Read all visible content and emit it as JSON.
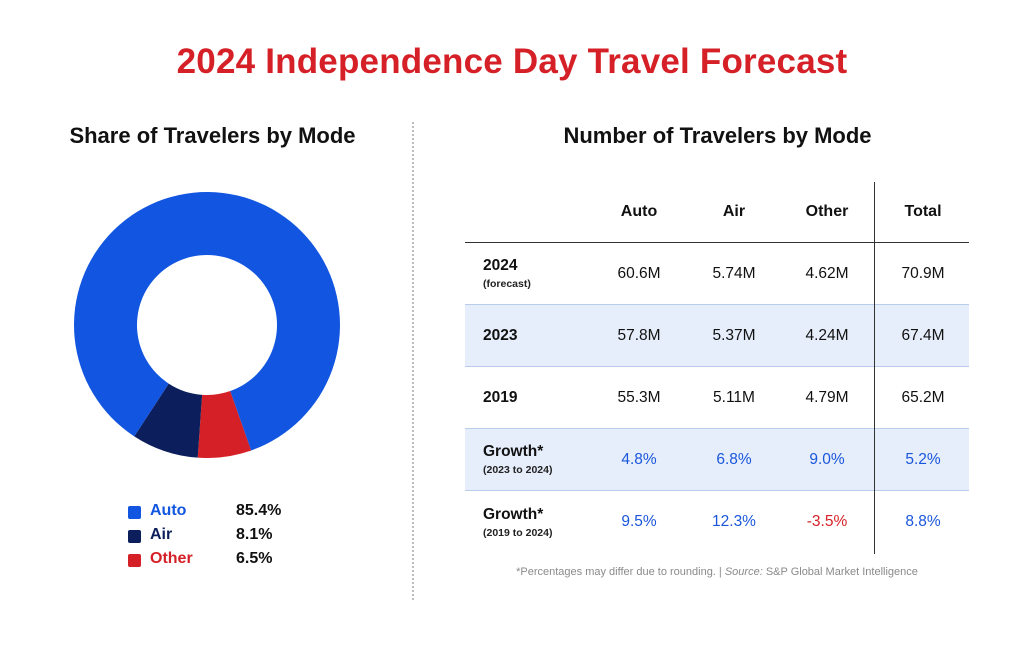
{
  "title": "2024 Independence Day Travel Forecast",
  "colors": {
    "auto": "#1155e0",
    "air": "#0c1f5c",
    "other": "#d62027",
    "title": "#d62027",
    "growth_positive": "#1a56db",
    "growth_negative": "#d62027",
    "row_shade": "#e6eefb"
  },
  "left_panel": {
    "title": "Share of Travelers by Mode",
    "legend": [
      {
        "label": "Auto",
        "value": "85.4%",
        "color": "#1155e0"
      },
      {
        "label": "Air",
        "value": "8.1%",
        "color": "#0c1f5c"
      },
      {
        "label": "Other",
        "value": "6.5%",
        "color": "#d62027"
      }
    ]
  },
  "right_panel": {
    "title": "Number of Travelers by Mode",
    "columns": [
      "Auto",
      "Air",
      "Other",
      "Total"
    ],
    "rows": [
      {
        "label": "2024",
        "sublabel": "(forecast)",
        "values": [
          "60.6M",
          "5.74M",
          "4.62M",
          "70.9M"
        ]
      },
      {
        "label": "2023",
        "sublabel": "",
        "values": [
          "57.8M",
          "5.37M",
          "4.24M",
          "67.4M"
        ]
      },
      {
        "label": "2019",
        "sublabel": "",
        "values": [
          "55.3M",
          "5.11M",
          "4.79M",
          "65.2M"
        ]
      },
      {
        "label": "Growth*",
        "sublabel": "(2023 to 2024)",
        "values": [
          "4.8%",
          "6.8%",
          "9.0%",
          "5.2%"
        ]
      },
      {
        "label": "Growth*",
        "sublabel": "(2019 to 2024)",
        "values": [
          "9.5%",
          "12.3%",
          "-3.5%",
          "8.8%"
        ]
      }
    ],
    "footnote": "*Percentages may differ due to rounding. | ",
    "source_label": "Source:",
    "source": " S&P Global Market Intelligence"
  },
  "chart_data": [
    {
      "type": "pie",
      "title": "Share of Travelers by Mode",
      "categories": [
        "Auto",
        "Air",
        "Other"
      ],
      "values": [
        85.4,
        8.1,
        6.5
      ],
      "unit": "%",
      "donut": true,
      "legend": "bottom"
    },
    {
      "type": "table",
      "title": "Number of Travelers by Mode",
      "columns": [
        "Auto",
        "Air",
        "Other",
        "Total"
      ],
      "rows": [
        {
          "label": "2024 (forecast)",
          "values": [
            "60.6M",
            "5.74M",
            "4.62M",
            "70.9M"
          ]
        },
        {
          "label": "2023",
          "values": [
            "57.8M",
            "5.37M",
            "4.24M",
            "67.4M"
          ]
        },
        {
          "label": "2019",
          "values": [
            "55.3M",
            "5.11M",
            "4.79M",
            "65.2M"
          ]
        },
        {
          "label": "Growth* (2023 to 2024)",
          "values": [
            "4.8%",
            "6.8%",
            "9.0%",
            "5.2%"
          ]
        },
        {
          "label": "Growth* (2019 to 2024)",
          "values": [
            "9.5%",
            "12.3%",
            "-3.5%",
            "8.8%"
          ]
        }
      ]
    }
  ]
}
